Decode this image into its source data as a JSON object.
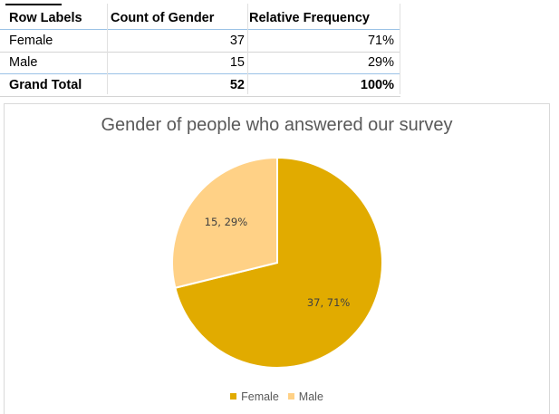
{
  "pivot_table": {
    "headers": [
      "Row Labels",
      "Count of Gender",
      "Relative Frequency"
    ],
    "rows": [
      {
        "label": "Female",
        "count": "37",
        "freq": "71%"
      },
      {
        "label": "Male",
        "count": "15",
        "freq": "29%"
      }
    ],
    "total": {
      "label": "Grand Total",
      "count": "52",
      "freq": "100%"
    }
  },
  "chart_data": {
    "type": "pie",
    "title": "Gender of people who answered our survey",
    "categories": [
      "Female",
      "Male"
    ],
    "values": [
      37,
      15
    ],
    "data_labels": [
      "37, 71%",
      "15, 29%"
    ],
    "colors": [
      "#e1ab00",
      "#ffd186"
    ],
    "legend": "bottom"
  }
}
